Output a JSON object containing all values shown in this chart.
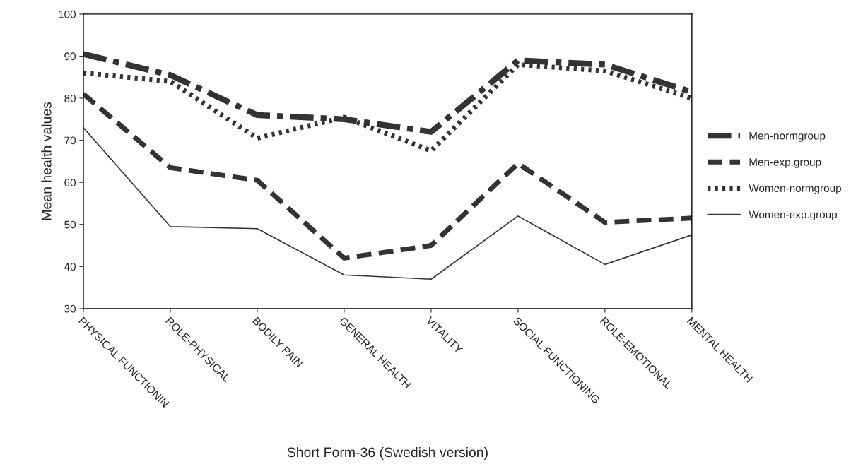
{
  "chart_data": {
    "type": "line",
    "xlabel": "Short Form-36 (Swedish version)",
    "ylabel": "Mean health values",
    "categories": [
      "PHYSICAL FUNCTIONIN",
      "ROLE-PHYSICAL",
      "BODILY PAIN",
      "GENERAL HEALTH",
      "VITALITY",
      "SOCIAL FUNCTIONING",
      "ROLE-EMOTIONAL",
      "MENTAL HEALTH"
    ],
    "series": [
      {
        "name": "Men-normgroup",
        "color": "#333333",
        "line_style": "dashdot",
        "values": [
          90.5,
          85.5,
          76,
          75,
          72,
          89,
          88,
          81.5
        ]
      },
      {
        "name": "Men-exp.group",
        "color": "#333333",
        "line_style": "dashed",
        "values": [
          81,
          63.5,
          60.5,
          42,
          45,
          64.5,
          50.5,
          51.5
        ]
      },
      {
        "name": "Women-normgroup",
        "color": "#333333",
        "line_style": "dotted",
        "values": [
          86,
          84,
          70.5,
          75.5,
          67.5,
          88,
          86.5,
          80
        ]
      },
      {
        "name": "Women-exp.group",
        "color": "#333333",
        "line_style": "solid",
        "values": [
          73,
          49.5,
          49,
          38,
          37,
          52,
          40.5,
          47.5
        ]
      }
    ],
    "ylim": [
      30,
      100
    ],
    "yticks": [
      30,
      40,
      50,
      60,
      70,
      80,
      90,
      100
    ],
    "grid": false,
    "legend": "right",
    "marker": "none"
  }
}
